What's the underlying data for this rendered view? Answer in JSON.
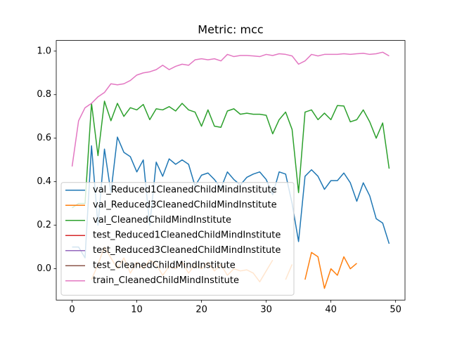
{
  "chart_data": {
    "type": "line",
    "title": "Metric: mcc",
    "x": [
      0,
      1,
      2,
      3,
      4,
      5,
      6,
      7,
      8,
      9,
      10,
      11,
      12,
      13,
      14,
      15,
      16,
      17,
      18,
      19,
      20,
      21,
      22,
      23,
      24,
      25,
      26,
      27,
      28,
      29,
      30,
      31,
      32,
      33,
      34,
      35,
      36,
      37,
      38,
      39,
      40,
      41,
      42,
      43,
      44,
      45,
      46,
      47,
      48,
      49
    ],
    "xlim": [
      -2.45,
      51.45
    ],
    "xticks": [
      0,
      10,
      20,
      30,
      40,
      50
    ],
    "ylim": [
      -0.144,
      1.049
    ],
    "yticks": [
      {
        "value": 0,
        "label": "0.0"
      },
      0.2,
      0.4,
      0.6,
      0.8,
      {
        "value": 1,
        "label": "1.0"
      }
    ],
    "legend": "lower left",
    "series": [
      {
        "name": "val_Reduced1CleanedChildMindInstitute",
        "color": "#1f77b4",
        "values": [
          0.1,
          0.1,
          0.05,
          0.565,
          0.2,
          0.55,
          0.35,
          0.605,
          0.535,
          0.515,
          0.445,
          0.5,
          0.2,
          0.49,
          0.425,
          0.505,
          0.48,
          0.5,
          0.48,
          0.38,
          0.43,
          0.44,
          0.41,
          0.37,
          0.445,
          0.41,
          0.385,
          0.42,
          0.435,
          0.445,
          0.41,
          0.34,
          0.445,
          0.435,
          0.3,
          0.125,
          0.425,
          0.455,
          0.425,
          0.365,
          0.405,
          0.405,
          0.44,
          0.395,
          0.31,
          0.395,
          0.335,
          0.23,
          0.21,
          0.115
        ]
      },
      {
        "name": "val_Reduced3CleanedChildMindInstitute",
        "color": "#ff7f0e",
        "values": [
          null,
          null,
          null,
          -0.05,
          0.02,
          0.1,
          0.05,
          0.0,
          0.05,
          -0.02,
          0.03,
          0.0,
          0.04,
          0.02,
          -0.03,
          0.01,
          0.0,
          0.03,
          -0.02,
          0.02,
          0.0,
          0.03,
          -0.01,
          0.02,
          -0.03,
          0.0,
          -0.01,
          -0.005,
          -0.02,
          -0.06,
          -0.01,
          0.04,
          null,
          -0.05,
          0.02,
          null,
          -0.05,
          0.075,
          0.055,
          -0.09,
          0.0,
          -0.03,
          0.055,
          0.0,
          0.025,
          null,
          null,
          null,
          null,
          null
        ]
      },
      {
        "name": "val_CleanedChildMindInstitute",
        "color": "#2ca02c",
        "values": [
          0.28,
          0.3,
          0.3,
          0.76,
          0.52,
          0.77,
          0.68,
          0.76,
          0.7,
          0.74,
          0.73,
          0.755,
          0.685,
          0.735,
          0.73,
          0.745,
          0.725,
          0.76,
          0.73,
          0.72,
          0.655,
          0.73,
          0.655,
          0.65,
          0.725,
          0.735,
          0.71,
          0.715,
          0.71,
          0.71,
          0.705,
          0.62,
          0.685,
          0.72,
          0.64,
          0.35,
          0.72,
          0.73,
          0.685,
          0.715,
          0.685,
          0.75,
          0.748,
          0.675,
          0.685,
          0.73,
          0.675,
          0.6,
          0.67,
          0.46
        ]
      },
      {
        "name": "test_Reduced1CleanedChildMindInstitute",
        "color": "#d62728",
        "values": [
          null,
          null,
          null,
          null,
          null,
          null,
          null,
          null,
          null,
          null,
          null,
          null,
          null,
          null,
          null,
          null,
          null,
          null,
          null,
          null,
          null,
          null,
          null,
          null,
          null,
          null,
          null,
          null,
          null,
          null,
          null,
          null,
          null,
          null,
          null,
          null,
          null,
          null,
          null,
          null,
          null,
          null,
          null,
          null,
          null,
          null,
          null,
          null,
          null,
          null
        ]
      },
      {
        "name": "test_Reduced3CleanedChildMindInstitute",
        "color": "#9467bd",
        "values": [
          null,
          null,
          null,
          null,
          null,
          null,
          null,
          null,
          null,
          null,
          null,
          null,
          null,
          null,
          null,
          null,
          null,
          null,
          null,
          null,
          null,
          null,
          null,
          null,
          null,
          null,
          null,
          null,
          null,
          null,
          null,
          null,
          null,
          null,
          null,
          null,
          null,
          null,
          null,
          null,
          null,
          null,
          null,
          null,
          null,
          null,
          null,
          null,
          null,
          null
        ]
      },
      {
        "name": "test_CleanedChildMindInstitute",
        "color": "#8c564b",
        "values": [
          null,
          null,
          null,
          null,
          null,
          null,
          null,
          null,
          null,
          null,
          null,
          null,
          null,
          null,
          null,
          null,
          null,
          null,
          null,
          null,
          null,
          null,
          null,
          null,
          null,
          null,
          null,
          null,
          null,
          null,
          null,
          null,
          null,
          null,
          null,
          null,
          null,
          null,
          null,
          null,
          null,
          null,
          null,
          null,
          null,
          null,
          null,
          null,
          null,
          null
        ]
      },
      {
        "name": "train_CleanedChildMindInstitute",
        "color": "#e377c2",
        "values": [
          0.47,
          0.68,
          0.74,
          0.76,
          0.79,
          0.81,
          0.85,
          0.845,
          0.85,
          0.865,
          0.89,
          0.9,
          0.905,
          0.915,
          0.935,
          0.915,
          0.93,
          0.94,
          0.935,
          0.96,
          0.965,
          0.96,
          0.965,
          0.955,
          0.985,
          0.975,
          0.98,
          0.98,
          0.978,
          0.975,
          0.985,
          0.98,
          0.988,
          0.985,
          0.978,
          0.94,
          0.955,
          0.985,
          0.978,
          0.985,
          0.985,
          0.985,
          0.988,
          0.985,
          0.988,
          0.99,
          0.985,
          0.988,
          0.995,
          0.978
        ]
      }
    ]
  }
}
